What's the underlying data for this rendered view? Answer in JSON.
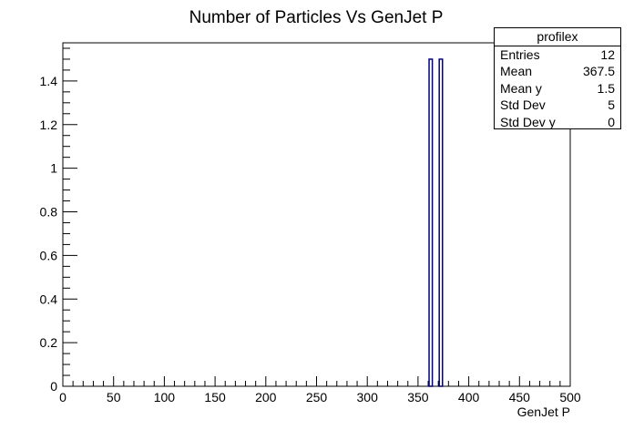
{
  "chart_data": {
    "type": "bar",
    "title": "Number of Particles Vs GenJet P",
    "xlabel": "GenJet P",
    "ylabel": "",
    "xlim": [
      0,
      500
    ],
    "ylim": [
      0,
      1.575
    ],
    "bin_width": 5,
    "xticks": [
      0,
      50,
      100,
      150,
      200,
      250,
      300,
      350,
      400,
      450,
      500
    ],
    "yticks": [
      0,
      0.2,
      0.4,
      0.6,
      0.8,
      1,
      1.2,
      1.4
    ],
    "bins": [
      {
        "x_low": 360,
        "x_high": 365,
        "value": 1.5
      },
      {
        "x_low": 370,
        "x_high": 375,
        "value": 1.5
      }
    ],
    "colors": {
      "bar_stroke": "#000080",
      "axis": "#000000"
    }
  },
  "stats": {
    "name": "profilex",
    "rows": [
      {
        "label": "Entries",
        "value": "12"
      },
      {
        "label": "Mean",
        "value": "367.5"
      },
      {
        "label": "Mean y",
        "value": "1.5"
      },
      {
        "label": "Std Dev",
        "value": "5"
      },
      {
        "label": "Std Dev y",
        "value": "0"
      }
    ]
  }
}
